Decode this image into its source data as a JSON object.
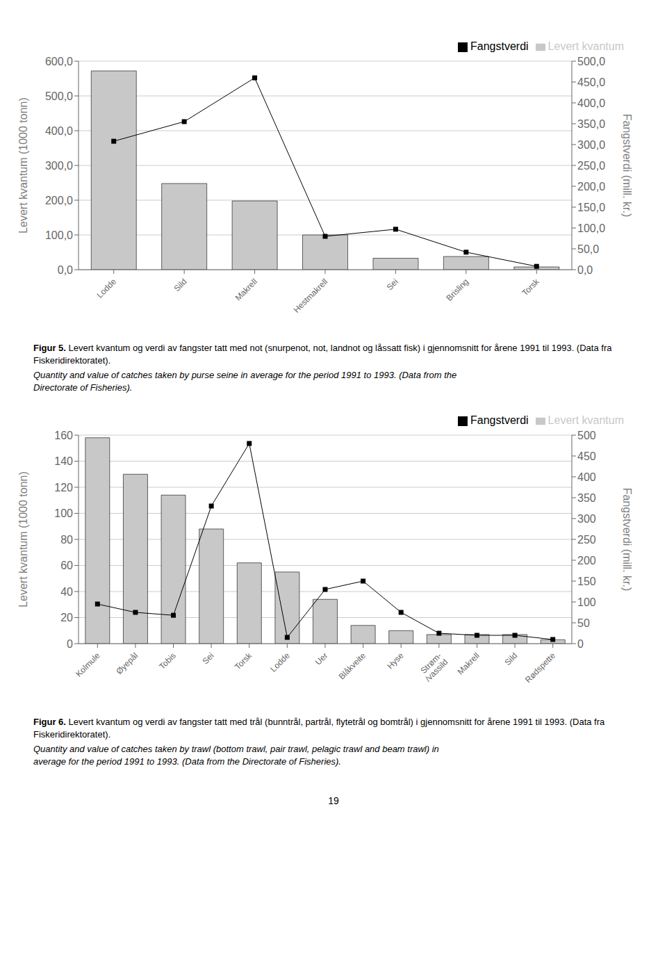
{
  "chart_data": [
    {
      "type": "bar",
      "categories": [
        "Lodde",
        "Sild",
        "Makrell",
        "Hestmakrell",
        "Sei",
        "Brisling",
        "Torsk"
      ],
      "series": [
        {
          "name": "Levert kvantum",
          "type": "bar",
          "color": "#c8c8c8",
          "values": [
            572,
            248,
            198,
            100,
            33,
            38,
            8
          ]
        },
        {
          "name": "Fangstverdi",
          "type": "line",
          "axis": "y2",
          "color": "#000000",
          "marker": "square",
          "values": [
            308,
            355,
            460,
            80,
            97,
            42,
            8
          ]
        }
      ],
      "ylim": [
        0,
        600
      ],
      "yticks": [
        {
          "value": 0,
          "label": "0,0"
        },
        {
          "value": 100,
          "label": "100,0"
        },
        {
          "value": 200,
          "label": "200,0"
        },
        {
          "value": 300,
          "label": "300,0"
        },
        {
          "value": 400,
          "label": "400,0"
        },
        {
          "value": 500,
          "label": "500,0"
        },
        {
          "value": 600,
          "label": "600,0"
        }
      ],
      "y2lim": [
        0,
        500
      ],
      "y2ticks": [
        {
          "value": 0,
          "label": "0,0"
        },
        {
          "value": 50,
          "label": "50,0"
        },
        {
          "value": 100,
          "label": "100,0"
        },
        {
          "value": 150,
          "label": "150,0"
        },
        {
          "value": 200,
          "label": "200,0"
        },
        {
          "value": 250,
          "label": "250,0"
        },
        {
          "value": 300,
          "label": "300,0"
        },
        {
          "value": 350,
          "label": "350,0"
        },
        {
          "value": 400,
          "label": "400,0"
        },
        {
          "value": 450,
          "label": "450,0"
        },
        {
          "value": 500,
          "label": "500,0"
        }
      ],
      "ylabel": "Levert kvantum (1000 tonn)",
      "y2label": "Fangstverdi (mill. kr.)",
      "grid": true,
      "legend": "upper right",
      "annotations": [
        "Figur 5.",
        " Levert kvantum og verdi av fangster tatt med not (snurpenot, not, landnot og låssatt fisk) i gjennomsnitt for årene 1991 til 1993. (Data fra Fiskeridirektoratet).",
        "Quantity and value of catches taken by purse seine in average for the period 1991 to 1993. (Data from the\nDirectorate of Fisheries)."
      ]
    },
    {
      "type": "bar",
      "categories": [
        "Kolmule",
        "Øyepål",
        "Tobis",
        "Sei",
        "Torsk",
        "Lodde",
        "Uer",
        "Blåkveite",
        "Hyse",
        "Strøm-\n/vassild",
        "Makrell",
        "Sild",
        "Rødspette"
      ],
      "series": [
        {
          "name": "Levert kvantum",
          "type": "bar",
          "color": "#c8c8c8",
          "values": [
            158,
            130,
            114,
            88,
            62,
            55,
            34,
            14,
            10,
            7,
            7,
            7,
            3
          ]
        },
        {
          "name": "Fangstverdi",
          "type": "line",
          "axis": "y2",
          "color": "#000000",
          "marker": "square",
          "values": [
            95,
            75,
            68,
            330,
            480,
            15,
            130,
            150,
            75,
            25,
            20,
            20,
            10
          ]
        }
      ],
      "ylim": [
        0,
        160
      ],
      "yticks": [
        0,
        20,
        40,
        60,
        80,
        100,
        120,
        140,
        160
      ],
      "y2lim": [
        0,
        500
      ],
      "y2ticks": [
        0,
        50,
        100,
        150,
        200,
        250,
        300,
        350,
        400,
        450,
        500
      ],
      "ylabel": "Levert kvantum (1000 tonn)",
      "y2label": "Fangstverdi (mill. kr.)",
      "grid": true,
      "legend": "upper right",
      "annotations": [
        "Figur 6.",
        " Levert kvantum og verdi av fangster tatt med trål (bunntrål, partrål, flytetrål og bomtrål) i gjennomsnitt for årene 1991 til 1993. (Data fra Fiskeridirektoratet).",
        "Quantity and value of catches taken by trawl (bottom trawl, pair trawl, pelagic trawl and beam trawl) in\naverage for the period 1991 to 1993. (Data from the Directorate of Fisheries)."
      ]
    }
  ],
  "page_number": "19"
}
